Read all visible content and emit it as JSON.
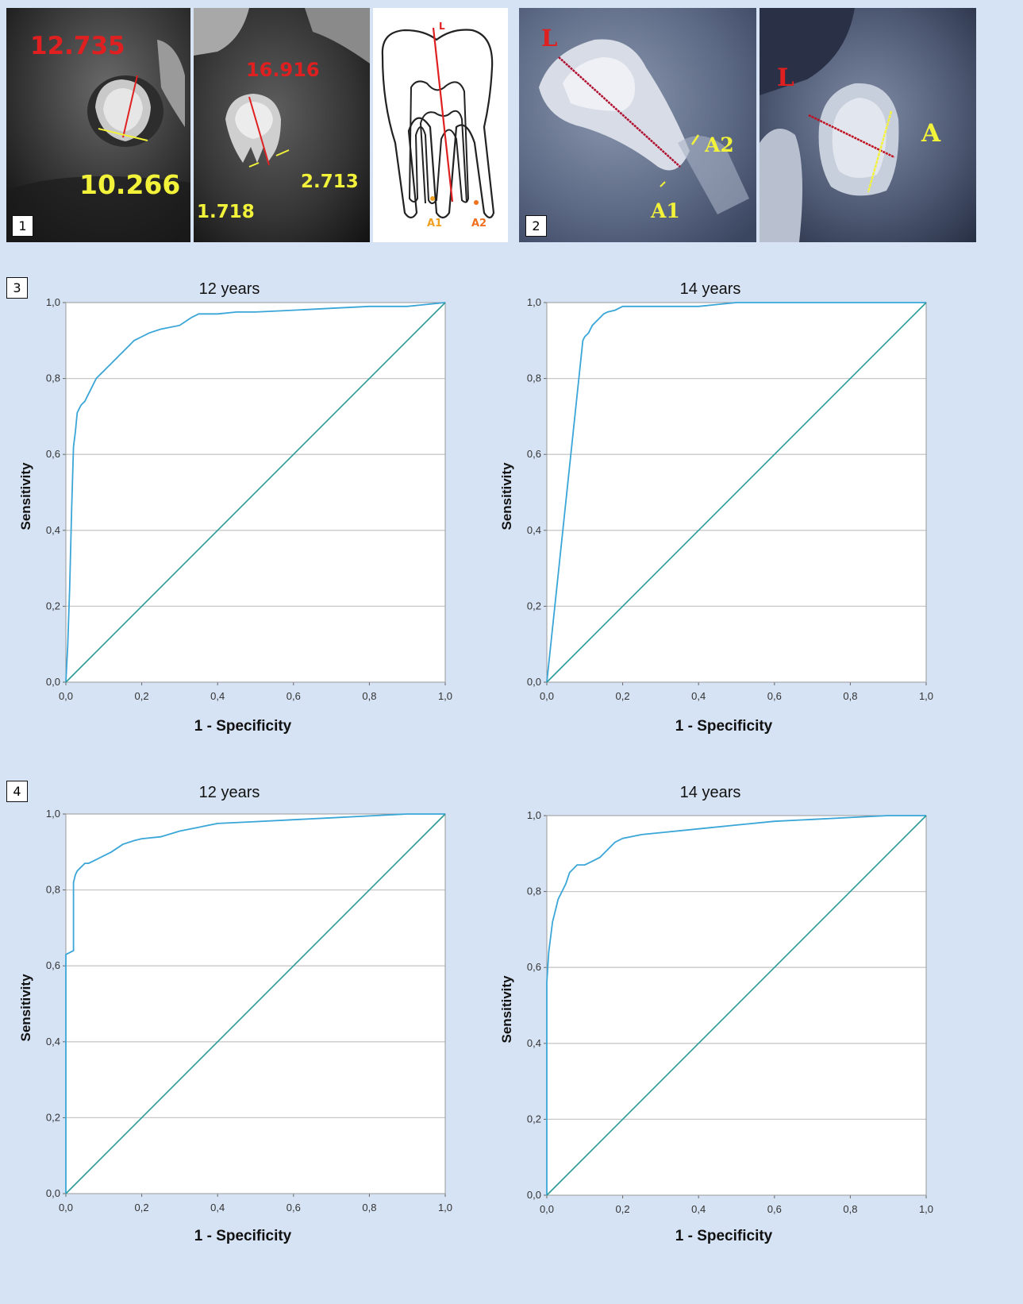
{
  "panels": {
    "panel1": {
      "badge": "1",
      "left_image": {
        "top_value": "12.735",
        "bottom_value": "10.266"
      },
      "middle_image": {
        "top_value": "16.916",
        "left_value": "1.718",
        "right_value": "2.713"
      },
      "diagram": {
        "label_L": "L",
        "label_A1": "A1",
        "label_A2": "A2"
      }
    },
    "panel2": {
      "badge": "2",
      "left_image": {
        "label_L": "L",
        "label_A1": "A1",
        "label_A2": "A2"
      },
      "right_image": {
        "label_L": "L",
        "label_A": "A"
      }
    },
    "panel3": {
      "badge": "3"
    },
    "panel4": {
      "badge": "4"
    }
  },
  "colors": {
    "background": "#d6e3f4",
    "roc_curve": "#3aa6d8",
    "reference_line": "#2a9a9a",
    "gridline": "#c8c8c8",
    "measure_red": "#e02020",
    "measure_yellow": "#f2f23a"
  },
  "chart_data": [
    {
      "type": "line",
      "panel": "3",
      "title": "12 years",
      "xlabel": "1 - Specificity",
      "ylabel": "Sensitivity",
      "xlim": [
        0,
        1
      ],
      "ylim": [
        0,
        1
      ],
      "xticks": [
        "0,0",
        "0,2",
        "0,4",
        "0,6",
        "0,8",
        "1,0"
      ],
      "yticks": [
        "0,0",
        "0,2",
        "0,4",
        "0,6",
        "0,8",
        "1,0"
      ],
      "grid": "horizontal",
      "series": [
        {
          "role": "roc",
          "x": [
            0,
            0.005,
            0.01,
            0.015,
            0.02,
            0.025,
            0.03,
            0.035,
            0.04,
            0.05,
            0.06,
            0.07,
            0.08,
            0.09,
            0.1,
            0.12,
            0.14,
            0.16,
            0.18,
            0.2,
            0.22,
            0.25,
            0.3,
            0.33,
            0.35,
            0.4,
            0.45,
            0.5,
            0.6,
            0.7,
            0.8,
            0.9,
            0.95,
            1.0
          ],
          "y": [
            0,
            0.1,
            0.25,
            0.45,
            0.62,
            0.66,
            0.71,
            0.72,
            0.73,
            0.74,
            0.76,
            0.78,
            0.8,
            0.81,
            0.82,
            0.84,
            0.86,
            0.88,
            0.9,
            0.91,
            0.92,
            0.93,
            0.94,
            0.96,
            0.97,
            0.97,
            0.975,
            0.975,
            0.98,
            0.985,
            0.99,
            0.99,
            0.995,
            1.0
          ]
        },
        {
          "role": "reference",
          "x": [
            0,
            1
          ],
          "y": [
            0,
            1
          ]
        }
      ]
    },
    {
      "type": "line",
      "panel": "3",
      "title": "14 years",
      "xlabel": "1 - Specificity",
      "ylabel": "Sensitivity",
      "xlim": [
        0,
        1
      ],
      "ylim": [
        0,
        1
      ],
      "xticks": [
        "0,0",
        "0,2",
        "0,4",
        "0,6",
        "0,8",
        "1,0"
      ],
      "yticks": [
        "0,0",
        "0,2",
        "0,4",
        "0,6",
        "0,8",
        "1,0"
      ],
      "grid": "horizontal",
      "series": [
        {
          "role": "roc",
          "x": [
            0,
            0.095,
            0.1,
            0.11,
            0.12,
            0.13,
            0.14,
            0.15,
            0.16,
            0.18,
            0.2,
            0.25,
            0.3,
            0.4,
            0.45,
            0.5,
            0.6,
            0.8,
            1.0
          ],
          "y": [
            0,
            0.9,
            0.91,
            0.92,
            0.94,
            0.95,
            0.96,
            0.97,
            0.975,
            0.98,
            0.99,
            0.99,
            0.99,
            0.99,
            0.995,
            1.0,
            1.0,
            1.0,
            1.0
          ]
        },
        {
          "role": "reference",
          "x": [
            0,
            1
          ],
          "y": [
            0,
            1
          ]
        }
      ]
    },
    {
      "type": "line",
      "panel": "4",
      "title": "12 years",
      "xlabel": "1 - Specificity",
      "ylabel": "Sensitivity",
      "xlim": [
        0,
        1
      ],
      "ylim": [
        0,
        1
      ],
      "xticks": [
        "0,0",
        "0,2",
        "0,4",
        "0,6",
        "0,8",
        "1,0"
      ],
      "yticks": [
        "0,0",
        "0,2",
        "0,4",
        "0,6",
        "0,8",
        "1,0"
      ],
      "grid": "horizontal",
      "series": [
        {
          "role": "roc",
          "x": [
            0,
            0,
            0.02,
            0.02,
            0.025,
            0.03,
            0.04,
            0.05,
            0.06,
            0.08,
            0.1,
            0.12,
            0.15,
            0.18,
            0.2,
            0.25,
            0.3,
            0.35,
            0.4,
            0.5,
            0.6,
            0.7,
            0.8,
            0.9,
            1.0
          ],
          "y": [
            0,
            0.63,
            0.64,
            0.82,
            0.84,
            0.85,
            0.86,
            0.87,
            0.87,
            0.88,
            0.89,
            0.9,
            0.92,
            0.93,
            0.935,
            0.94,
            0.955,
            0.965,
            0.975,
            0.98,
            0.985,
            0.99,
            0.995,
            1.0,
            1.0
          ]
        },
        {
          "role": "reference",
          "x": [
            0,
            1
          ],
          "y": [
            0,
            1
          ]
        }
      ]
    },
    {
      "type": "line",
      "panel": "4",
      "title": "14 years",
      "xlabel": "1 - Specificity",
      "ylabel": "Sensitivity",
      "xlim": [
        0,
        1
      ],
      "ylim": [
        0,
        1
      ],
      "xticks": [
        "0,0",
        "0,2",
        "0,4",
        "0,6",
        "0,8",
        "1,0"
      ],
      "yticks": [
        "0,0",
        "0,2",
        "0,4",
        "0,6",
        "0,8",
        "1,0"
      ],
      "grid": "horizontal",
      "series": [
        {
          "role": "roc",
          "x": [
            0,
            0,
            0.005,
            0.01,
            0.015,
            0.02,
            0.025,
            0.03,
            0.04,
            0.05,
            0.06,
            0.08,
            0.1,
            0.12,
            0.14,
            0.16,
            0.18,
            0.2,
            0.25,
            0.3,
            0.4,
            0.5,
            0.6,
            0.7,
            0.8,
            0.9,
            1.0
          ],
          "y": [
            0,
            0.56,
            0.64,
            0.68,
            0.72,
            0.74,
            0.76,
            0.78,
            0.8,
            0.82,
            0.85,
            0.87,
            0.87,
            0.88,
            0.89,
            0.91,
            0.93,
            0.94,
            0.95,
            0.955,
            0.965,
            0.975,
            0.985,
            0.99,
            0.995,
            1.0,
            1.0
          ]
        },
        {
          "role": "reference",
          "x": [
            0,
            1
          ],
          "y": [
            0,
            1
          ]
        }
      ]
    }
  ]
}
